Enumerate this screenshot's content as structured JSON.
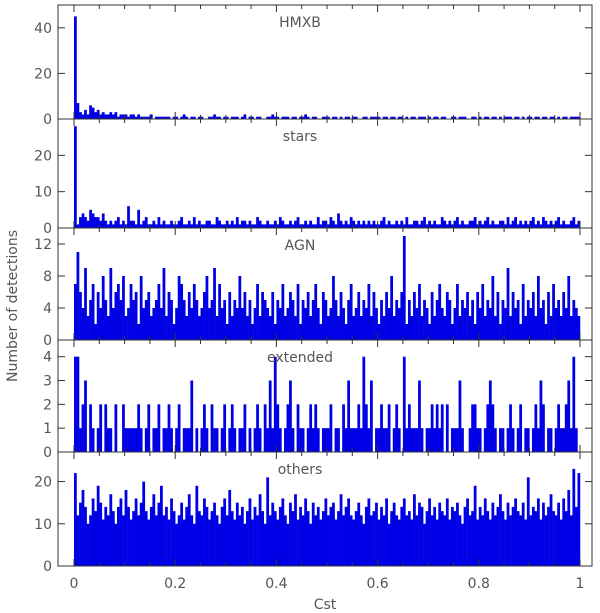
{
  "figure": {
    "ylabel": "Number of detections",
    "xlabel": "Cst"
  },
  "chart_data": [
    {
      "type": "bar",
      "title": "HMXB",
      "ylim": [
        0,
        50
      ],
      "yticks": [
        0,
        20,
        40
      ],
      "xlim": [
        0,
        1
      ],
      "bar_color": "#0000e6",
      "bin_width": 0.005,
      "values": [
        45,
        7,
        3,
        2,
        4,
        2,
        6,
        5,
        3,
        4,
        2,
        3,
        2,
        2,
        3,
        2,
        3,
        1,
        2,
        2,
        2,
        1,
        2,
        2,
        1,
        2,
        1,
        1,
        1,
        1,
        2,
        0,
        1,
        1,
        1,
        1,
        1,
        1,
        0,
        1,
        1,
        0,
        1,
        2,
        1,
        0,
        1,
        1,
        0,
        1,
        1,
        0,
        0,
        1,
        1,
        2,
        1,
        1,
        0,
        1,
        1,
        0,
        1,
        1,
        1,
        0,
        1,
        2,
        0,
        1,
        1,
        0,
        1,
        1,
        0,
        0,
        1,
        1,
        2,
        1,
        1,
        0,
        1,
        1,
        1,
        0,
        1,
        1,
        0,
        1,
        1,
        2,
        1,
        0,
        1,
        1,
        0,
        0,
        1,
        1,
        1,
        0,
        1,
        1,
        0,
        1,
        0,
        1,
        1,
        0,
        1,
        1,
        0,
        0,
        1,
        1,
        0,
        1,
        1,
        1,
        1,
        0,
        1,
        1,
        0,
        1,
        1,
        0,
        1,
        1,
        0,
        1,
        0,
        1,
        1,
        0,
        1,
        1,
        1,
        0,
        1,
        0,
        1,
        1,
        0,
        1,
        1,
        0,
        0,
        1,
        1,
        0,
        1,
        1,
        1,
        0,
        0,
        1,
        1,
        0,
        1,
        0,
        1,
        1,
        0,
        1,
        1,
        0,
        1,
        0,
        1,
        1,
        1,
        0,
        1,
        1,
        0,
        1,
        0,
        1,
        1,
        0,
        1,
        1,
        0,
        1,
        1,
        0,
        1,
        1,
        0,
        1,
        0,
        1,
        1,
        0,
        1,
        1,
        1,
        1
      ]
    },
    {
      "type": "bar",
      "title": "stars",
      "ylim": [
        0,
        30
      ],
      "yticks": [
        0,
        10,
        20
      ],
      "xlim": [
        0,
        1
      ],
      "bar_color": "#0000e6",
      "bin_width": 0.005,
      "values": [
        28,
        1,
        3,
        4,
        3,
        2,
        5,
        4,
        3,
        3,
        2,
        4,
        2,
        1,
        2,
        1,
        2,
        3,
        1,
        2,
        1,
        6,
        2,
        2,
        1,
        5,
        1,
        2,
        3,
        1,
        1,
        2,
        1,
        3,
        1,
        2,
        1,
        1,
        2,
        1,
        1,
        2,
        3,
        1,
        1,
        2,
        1,
        3,
        1,
        2,
        1,
        1,
        2,
        2,
        1,
        1,
        3,
        2,
        1,
        1,
        2,
        1,
        2,
        1,
        3,
        1,
        2,
        2,
        1,
        2,
        1,
        1,
        3,
        2,
        1,
        1,
        2,
        1,
        1,
        2,
        1,
        3,
        2,
        1,
        1,
        2,
        1,
        2,
        3,
        1,
        1,
        2,
        1,
        2,
        1,
        1,
        3,
        1,
        2,
        2,
        1,
        3,
        2,
        1,
        4,
        2,
        1,
        2,
        1,
        3,
        2,
        1,
        2,
        1,
        2,
        1,
        2,
        1,
        2,
        1,
        1,
        2,
        3,
        1,
        2,
        1,
        1,
        2,
        1,
        2,
        1,
        3,
        1,
        1,
        2,
        2,
        1,
        2,
        3,
        1,
        2,
        1,
        2,
        1,
        1,
        3,
        2,
        1,
        2,
        1,
        2,
        3,
        1,
        2,
        1,
        1,
        2,
        2,
        3,
        1,
        2,
        1,
        2,
        3,
        1,
        2,
        1,
        1,
        2,
        2,
        1,
        3,
        1,
        2,
        3,
        1,
        2,
        1,
        2,
        1,
        2,
        3,
        1,
        2,
        1,
        3,
        2,
        1,
        2,
        1,
        2,
        3,
        1,
        2,
        1,
        1,
        2,
        3,
        1,
        2
      ]
    },
    {
      "type": "bar",
      "title": "AGN",
      "ylim": [
        0,
        14
      ],
      "yticks": [
        0,
        4,
        8,
        12
      ],
      "xlim": [
        0,
        1
      ],
      "bar_color": "#0000e6",
      "bin_width": 0.005,
      "values": [
        7,
        11,
        6,
        4,
        9,
        3,
        5,
        7,
        2,
        6,
        4,
        8,
        5,
        3,
        9,
        4,
        6,
        7,
        5,
        8,
        3,
        4,
        7,
        5,
        6,
        2,
        8,
        4,
        5,
        6,
        3,
        4,
        5,
        7,
        4,
        9,
        3,
        6,
        5,
        2,
        4,
        8,
        7,
        5,
        3,
        6,
        4,
        7,
        5,
        3,
        4,
        6,
        8,
        4,
        5,
        9,
        3,
        7,
        4,
        5,
        2,
        6,
        3,
        5,
        4,
        8,
        4,
        6,
        3,
        5,
        2,
        4,
        7,
        3,
        6,
        5,
        4,
        3,
        6,
        2,
        5,
        4,
        7,
        3,
        4,
        6,
        5,
        3,
        7,
        2,
        5,
        4,
        6,
        3,
        5,
        7,
        4,
        2,
        6,
        5,
        3,
        4,
        8,
        5,
        3,
        6,
        4,
        2,
        5,
        7,
        3,
        4,
        6,
        3,
        5,
        4,
        7,
        3,
        6,
        4,
        2,
        5,
        3,
        6,
        4,
        8,
        3,
        5,
        4,
        6,
        13,
        2,
        5,
        3,
        6,
        4,
        7,
        3,
        5,
        4,
        2,
        6,
        3,
        5,
        7,
        4,
        3,
        6,
        5,
        2,
        4,
        7,
        3,
        5,
        4,
        6,
        3,
        5,
        2,
        6,
        4,
        7,
        3,
        5,
        4,
        8,
        3,
        6,
        2,
        5,
        4,
        9,
        3,
        6,
        4,
        5,
        2,
        7,
        3,
        5,
        4,
        6,
        3,
        8,
        4,
        5,
        2,
        6,
        3,
        7,
        4,
        5,
        3,
        6,
        4,
        8,
        3,
        5,
        4,
        3
      ]
    },
    {
      "type": "bar",
      "title": "extended",
      "ylim": [
        0,
        4.7
      ],
      "yticks": [
        0,
        1,
        2,
        3,
        4
      ],
      "xlim": [
        0,
        1
      ],
      "bar_color": "#0000e6",
      "bin_width": 0.005,
      "values": [
        4,
        4,
        1,
        2,
        3,
        0,
        2,
        1,
        0,
        1,
        2,
        0,
        2,
        1,
        1,
        0,
        2,
        0,
        0,
        2,
        1,
        1,
        1,
        1,
        1,
        2,
        1,
        0,
        1,
        2,
        0,
        1,
        1,
        2,
        0,
        1,
        1,
        2,
        1,
        0,
        1,
        2,
        0,
        1,
        1,
        1,
        3,
        0,
        1,
        0,
        1,
        2,
        1,
        0,
        2,
        1,
        1,
        0,
        1,
        2,
        0,
        1,
        2,
        1,
        0,
        1,
        1,
        2,
        0,
        1,
        0,
        1,
        2,
        1,
        0,
        2,
        1,
        3,
        1,
        4,
        2,
        1,
        0,
        1,
        2,
        3,
        1,
        0,
        2,
        1,
        1,
        0,
        1,
        2,
        1,
        2,
        1,
        0,
        1,
        1,
        1,
        2,
        0,
        1,
        1,
        0,
        2,
        1,
        3,
        1,
        1,
        1,
        2,
        1,
        4,
        2,
        1,
        3,
        0,
        1,
        1,
        2,
        1,
        1,
        2,
        0,
        1,
        2,
        1,
        0,
        4,
        1,
        2,
        1,
        1,
        1,
        3,
        1,
        0,
        1,
        1,
        2,
        1,
        2,
        1,
        2,
        0,
        2,
        0,
        1,
        1,
        1,
        3,
        1,
        0,
        0,
        1,
        2,
        2,
        1,
        1,
        0,
        1,
        2,
        3,
        2,
        1,
        0,
        1,
        1,
        0,
        1,
        2,
        1,
        0,
        1,
        2,
        0,
        1,
        1,
        0,
        1,
        2,
        1,
        3,
        2,
        0,
        1,
        1,
        0,
        1,
        2,
        1,
        1,
        2,
        3,
        1,
        4,
        1,
        0
      ]
    },
    {
      "type": "bar",
      "title": "others",
      "ylim": [
        0,
        27
      ],
      "yticks": [
        0,
        10,
        20
      ],
      "xlim": [
        0,
        1
      ],
      "bar_color": "#0000e6",
      "bin_width": 0.005,
      "values": [
        22,
        12,
        15,
        18,
        14,
        10,
        12,
        16,
        13,
        19,
        15,
        11,
        14,
        12,
        17,
        13,
        10,
        14,
        16,
        12,
        18,
        14,
        11,
        13,
        16,
        12,
        15,
        20,
        13,
        11,
        14,
        17,
        12,
        15,
        19,
        12,
        14,
        11,
        16,
        13,
        10,
        12,
        15,
        11,
        14,
        17,
        12,
        10,
        19,
        13,
        12,
        16,
        14,
        11,
        13,
        15,
        12,
        10,
        14,
        16,
        12,
        18,
        13,
        11,
        15,
        12,
        14,
        10,
        13,
        16,
        11,
        14,
        12,
        17,
        13,
        10,
        21,
        12,
        15,
        13,
        11,
        14,
        16,
        12,
        10,
        15,
        13,
        17,
        11,
        14,
        12,
        16,
        13,
        10,
        15,
        12,
        14,
        11,
        13,
        16,
        12,
        14,
        15,
        11,
        13,
        17,
        12,
        14,
        16,
        12,
        11,
        13,
        15,
        12,
        10,
        14,
        16,
        12,
        13,
        15,
        11,
        14,
        12,
        16,
        10,
        13,
        15,
        12,
        11,
        14,
        16,
        12,
        13,
        11,
        17,
        12,
        15,
        14,
        10,
        13,
        16,
        12,
        14,
        11,
        15,
        13,
        12,
        16,
        11,
        14,
        13,
        15,
        12,
        10,
        14,
        16,
        12,
        13,
        19,
        11,
        14,
        12,
        16,
        13,
        11,
        15,
        12,
        14,
        17,
        13,
        11,
        15,
        12,
        14,
        16,
        13,
        12,
        15,
        11,
        21,
        12,
        14,
        13,
        16,
        11,
        15,
        12,
        14,
        17,
        13,
        12,
        15,
        11,
        16,
        13,
        18,
        12,
        23,
        14,
        22
      ]
    }
  ],
  "xticks": [
    "0",
    "0.2",
    "0.4",
    "0.6",
    "0.8",
    "1"
  ]
}
